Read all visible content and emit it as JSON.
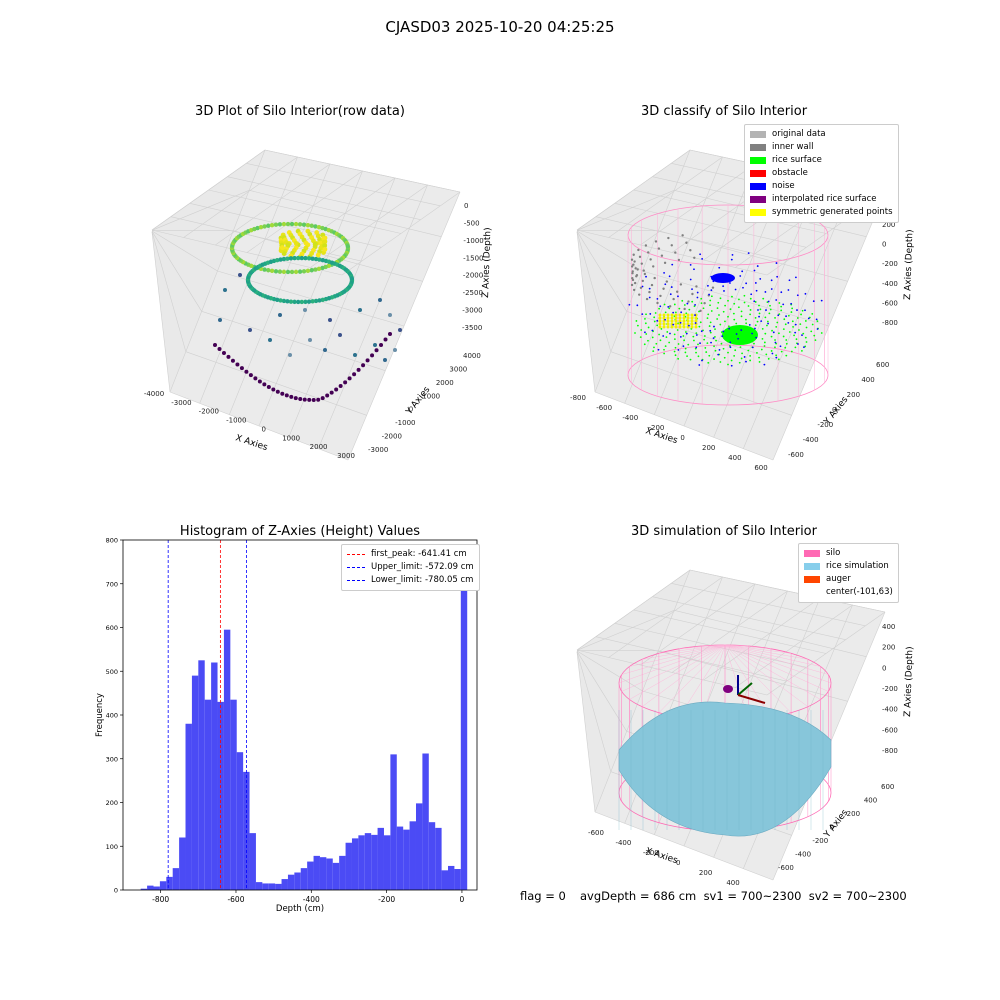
{
  "suptitle": "CJASD03 2025-10-20 04:25:25",
  "panel1": {
    "title": "3D Plot of Silo Interior(row data)",
    "xlabel": "X Axies",
    "ylabel": "Y Axies",
    "zlabel": "Z Axies (Depth)",
    "xticks": [
      "-4000",
      "-3000",
      "-2000",
      "-1000",
      "0",
      "1000",
      "2000",
      "3000"
    ],
    "yticks": [
      "-3000",
      "-2000",
      "-1000",
      "0",
      "1000",
      "2000",
      "3000",
      "4000"
    ],
    "zticks": [
      "0",
      "-500",
      "-1000",
      "-1500",
      "-2000",
      "-2500",
      "-3000",
      "-3500"
    ]
  },
  "panel2": {
    "title": "3D classify of Silo Interior",
    "xlabel": "X Axies",
    "ylabel": "Y Axies",
    "zlabel": "Z Axies (Depth)",
    "xticks": [
      "-800",
      "-600",
      "-400",
      "-200",
      "0",
      "200",
      "400",
      "600"
    ],
    "yticks": [
      "-600",
      "-400",
      "-200",
      "0",
      "200",
      "400",
      "600"
    ],
    "zticks": [
      "200",
      "0",
      "-200",
      "-400",
      "-600",
      "-800"
    ],
    "legend": [
      {
        "label": "original data",
        "color": "#b3b3b3"
      },
      {
        "label": "inner wall",
        "color": "#808080"
      },
      {
        "label": "rice surface",
        "color": "#00ff00"
      },
      {
        "label": "obstacle",
        "color": "#ff0000"
      },
      {
        "label": "noise",
        "color": "#0000ff"
      },
      {
        "label": "interpolated rice surface",
        "color": "#800080"
      },
      {
        "label": "symmetric generated points",
        "color": "#ffff00"
      }
    ]
  },
  "panel3": {
    "title": "Histogram of Z-Axies (Height) Values",
    "xlabel": "Depth (cm)",
    "ylabel": "Frequency",
    "legend": [
      {
        "label": "first_peak: -641.41 cm",
        "color": "#ff0000"
      },
      {
        "label": "Upper_limit: -572.09 cm",
        "color": "#0000ff"
      },
      {
        "label": "Lower_limit: -780.05 cm",
        "color": "#0000ff"
      }
    ]
  },
  "panel4": {
    "title": "3D simulation of Silo Interior",
    "xlabel": "X Axies",
    "ylabel": "Y Axies",
    "zlabel": "Z Axies (Depth)",
    "xticks": [
      "-600",
      "-400",
      "-200",
      "0",
      "200",
      "400"
    ],
    "yticks": [
      "-600",
      "-400",
      "-200",
      "0",
      "200",
      "400",
      "600"
    ],
    "zticks": [
      "400",
      "200",
      "0",
      "-200",
      "-400",
      "-600",
      "-800"
    ],
    "legend": [
      {
        "label": "silo",
        "color": "#ff69b4"
      },
      {
        "label": "rice simulation",
        "color": "#87ceeb"
      },
      {
        "label": "auger",
        "color": "#ff4500"
      },
      {
        "label": "center(-101,63)",
        "color": ""
      }
    ]
  },
  "footer": {
    "flag": "flag = 0",
    "stats": "avgDepth = 686 cm  sv1 = 700~2300  sv2 = 700~2300"
  },
  "chart_data": [
    {
      "type": "bar",
      "title": "Histogram of Z-Axies (Height) Values",
      "xlabel": "Depth (cm)",
      "ylabel": "Frequency",
      "xlim": [
        -900,
        40
      ],
      "ylim": [
        0,
        800
      ],
      "bin_width": 17.0,
      "bins_start": [
        -853,
        -836,
        -819,
        -802,
        -785,
        -768,
        -751,
        -734,
        -717,
        -700,
        -683,
        -666,
        -649,
        -632,
        -615,
        -598,
        -581,
        -564,
        -547,
        -530,
        -513,
        -496,
        -479,
        -462,
        -445,
        -428,
        -411,
        -394,
        -377,
        -360,
        -343,
        -326,
        -309,
        -292,
        -275,
        -258,
        -241,
        -224,
        -207,
        -190,
        -173,
        -156,
        -139,
        -122,
        -105,
        -88,
        -71,
        -54,
        -37,
        -20,
        -3
      ],
      "values": [
        3,
        10,
        8,
        20,
        30,
        50,
        120,
        380,
        490,
        525,
        435,
        520,
        430,
        595,
        435,
        315,
        270,
        130,
        18,
        15,
        15,
        14,
        25,
        35,
        40,
        50,
        65,
        78,
        75,
        72,
        62,
        78,
        108,
        118,
        125,
        130,
        126,
        142,
        125,
        310,
        145,
        138,
        157,
        198,
        312,
        155,
        142,
        45,
        55,
        48,
        760
      ],
      "x_ticks": [
        -800,
        -600,
        -400,
        -200,
        0
      ],
      "y_ticks": [
        0,
        100,
        200,
        300,
        400,
        500,
        600,
        700,
        800
      ],
      "vlines": [
        {
          "name": "first_peak: -641.41 cm",
          "x": -641.41,
          "color": "#ff0000"
        },
        {
          "name": "Upper_limit: -572.09 cm",
          "x": -572.09,
          "color": "#0000ff"
        },
        {
          "name": "Lower_limit: -780.05 cm",
          "x": -780.05,
          "color": "#0000ff"
        }
      ],
      "bar_color": "#4b4bf5",
      "grid": false,
      "legend_position": "top-right"
    },
    {
      "type": "scatter",
      "title": "3D Plot of Silo Interior(row data)",
      "xlabel": "X Axies",
      "ylabel": "Y Axies",
      "zlabel": "Z Axies (Depth)",
      "xlim": [
        -4000,
        3500
      ],
      "ylim": [
        -3000,
        4000
      ],
      "zlim": [
        -3500,
        0
      ]
    },
    {
      "type": "scatter",
      "title": "3D classify of Silo Interior",
      "xlabel": "X Axies",
      "ylabel": "Y Axies",
      "zlabel": "Z Axies (Depth)",
      "xlim": [
        -800,
        600
      ],
      "ylim": [
        -600,
        600
      ],
      "zlim": [
        -800,
        200
      ]
    },
    {
      "type": "scatter",
      "title": "3D simulation of Silo Interior",
      "xlabel": "X Axies",
      "ylabel": "Y Axies",
      "zlabel": "Z Axies (Depth)",
      "xlim": [
        -600,
        400
      ],
      "ylim": [
        -600,
        600
      ],
      "zlim": [
        -800,
        400
      ]
    }
  ]
}
